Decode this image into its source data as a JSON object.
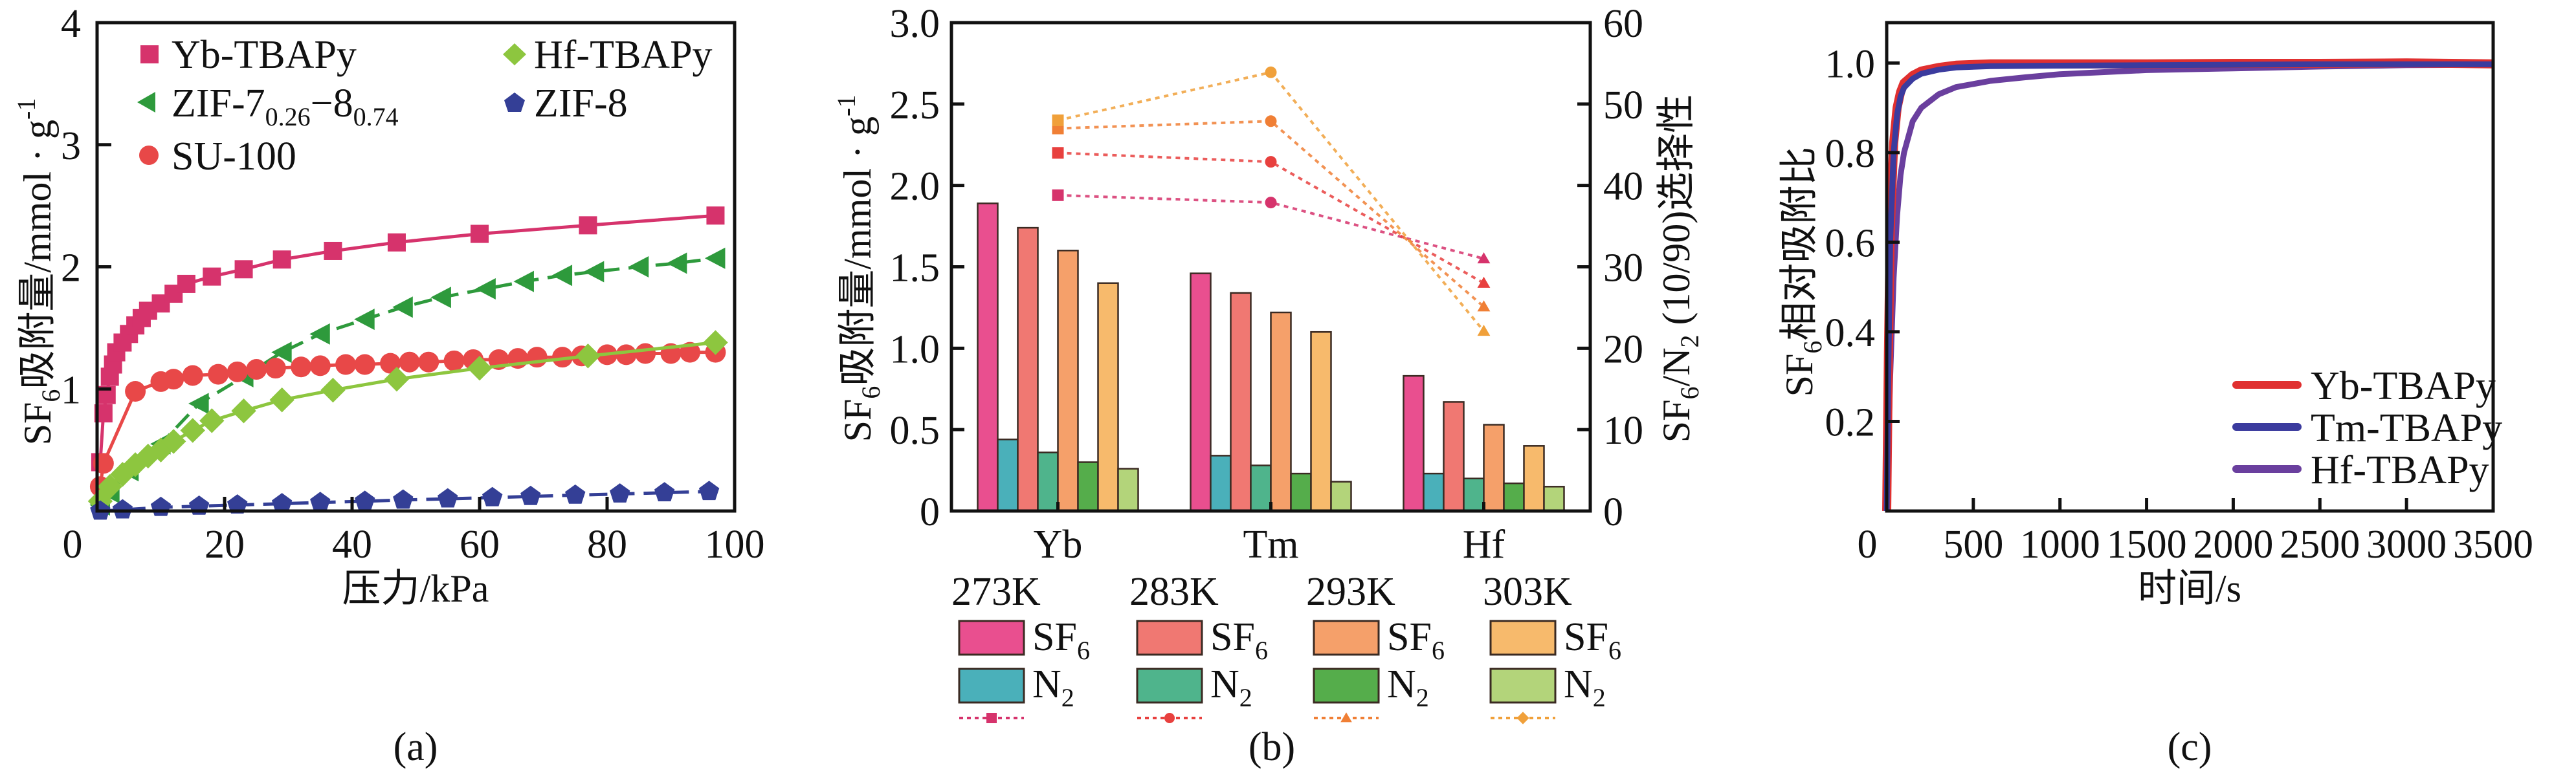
{
  "figure": {
    "panels": [
      "(a)",
      "(b)",
      "(c)"
    ]
  },
  "chart_data": [
    {
      "id": "a",
      "type": "scatter",
      "panel_label": "(a)",
      "title": "",
      "xlabel": "压力/kPa",
      "ylabel": "SF6吸附量/mmol · g-1",
      "ylabel_parts": {
        "pre": "SF",
        "sub": "6",
        "mid": "吸附量/mmol · g",
        "sup": "-1"
      },
      "xlim": [
        0,
        100
      ],
      "ylim": [
        0,
        4
      ],
      "xticks": [
        0,
        20,
        40,
        60,
        80,
        100
      ],
      "yticks": [
        1,
        2,
        3,
        4
      ],
      "grid": false,
      "legend_position": "top",
      "series": [
        {
          "name": "Yb-TBAPy",
          "legend_label": "Yb-TBAPy",
          "marker": "square",
          "color": "#d6336c",
          "line": "solid",
          "x": [
            0.5,
            1,
            1.5,
            2,
            2.5,
            3,
            4,
            5,
            6,
            7,
            8,
            10,
            12,
            14,
            18,
            23,
            29,
            37,
            47,
            60,
            77,
            97
          ],
          "y": [
            0.4,
            0.8,
            0.95,
            1.1,
            1.2,
            1.3,
            1.38,
            1.45,
            1.52,
            1.58,
            1.64,
            1.7,
            1.78,
            1.86,
            1.92,
            1.98,
            2.06,
            2.13,
            2.2,
            2.27,
            2.34,
            2.42
          ]
        },
        {
          "name": "ZIF-7(0.26)-8(0.74)",
          "legend_label": "ZIF-7",
          "legend_sub1": "0.26",
          "legend_mid": "−8",
          "legend_sub2": "0.74",
          "marker": "triangle-left",
          "color": "#2e9a3c",
          "line": "dashed",
          "x": [
            0.5,
            2,
            5,
            10,
            16,
            23,
            29,
            35,
            42,
            48,
            54,
            61,
            67,
            73,
            78,
            85,
            91,
            97
          ],
          "y": [
            0.05,
            0.15,
            0.33,
            0.55,
            0.88,
            1.1,
            1.3,
            1.45,
            1.57,
            1.67,
            1.75,
            1.82,
            1.88,
            1.93,
            1.96,
            2.0,
            2.03,
            2.07
          ]
        },
        {
          "name": "SU-100",
          "legend_label": "SU-100",
          "marker": "circle",
          "color": "#e84848",
          "line": "solid",
          "x": [
            0.5,
            1,
            6,
            10,
            12,
            15,
            19,
            22,
            25,
            28,
            32,
            35,
            39,
            42,
            46,
            49,
            52,
            56,
            59,
            63,
            66,
            69,
            73,
            76,
            80,
            83,
            86,
            90,
            93,
            97
          ],
          "y": [
            0.2,
            0.39,
            0.98,
            1.06,
            1.08,
            1.11,
            1.12,
            1.14,
            1.16,
            1.17,
            1.18,
            1.19,
            1.2,
            1.2,
            1.21,
            1.22,
            1.22,
            1.23,
            1.24,
            1.24,
            1.25,
            1.26,
            1.26,
            1.27,
            1.28,
            1.28,
            1.29,
            1.29,
            1.3,
            1.3
          ]
        },
        {
          "name": "Hf-TBAPy",
          "legend_label": "Hf-TBAPy",
          "marker": "diamond",
          "color": "#8dc63f",
          "line": "solid",
          "x": [
            0.5,
            2,
            4,
            6,
            8,
            10,
            12,
            15,
            18,
            23,
            29,
            37,
            47,
            60,
            77,
            97
          ],
          "y": [
            0.08,
            0.2,
            0.3,
            0.38,
            0.45,
            0.5,
            0.57,
            0.66,
            0.74,
            0.82,
            0.91,
            0.99,
            1.08,
            1.17,
            1.27,
            1.38
          ]
        },
        {
          "name": "ZIF-8",
          "legend_label": "ZIF-8",
          "marker": "pentagon",
          "color": "#343f96",
          "line": "dashed",
          "x": [
            0.5,
            4,
            10,
            16,
            22,
            29,
            35,
            42,
            48,
            55,
            62,
            68,
            75,
            82,
            89,
            96
          ],
          "y": [
            0.0,
            0.01,
            0.03,
            0.04,
            0.05,
            0.06,
            0.07,
            0.08,
            0.09,
            0.1,
            0.11,
            0.12,
            0.13,
            0.14,
            0.15,
            0.16
          ]
        }
      ]
    },
    {
      "id": "b",
      "type": "bar",
      "panel_label": "(b)",
      "title": "",
      "categories": [
        "Yb",
        "Tm",
        "Hf"
      ],
      "ylabel_left": "SF6吸附量/mmol · g-1",
      "ylabel_left_parts": {
        "pre": "SF",
        "sub": "6",
        "mid": "吸附量/mmol · g",
        "sup": "-1"
      },
      "ylabel_right": "SF6/N2 (10/90)选择性",
      "ylabel_right_parts": {
        "pre": "SF",
        "sub1": "6",
        "mid": "/N",
        "sub2": "2",
        "post": " (10/90)选择性"
      },
      "ylim_left": [
        0,
        3.0
      ],
      "ylim_right": [
        0,
        60
      ],
      "yticks_left": [
        "0",
        "0.5",
        "1.0",
        "1.5",
        "2.0",
        "2.5",
        "3.0"
      ],
      "yticks_right": [
        "0",
        "10",
        "20",
        "30",
        "40",
        "50",
        "60"
      ],
      "grid": false,
      "legend_position": "bottom",
      "temperatures": [
        "273K",
        "283K",
        "293K",
        "303K"
      ],
      "gas_labels": {
        "sf6_pre": "SF",
        "sf6_sub": "6",
        "n2_pre": "N",
        "n2_sub": "2"
      },
      "bar_series": [
        {
          "name": "273K SF6",
          "temp": "273K",
          "gas": "SF6",
          "color": "#e94f8f",
          "values": [
            1.89,
            1.46,
            0.83
          ]
        },
        {
          "name": "273K N2",
          "temp": "273K",
          "gas": "N2",
          "color": "#4ab0ba",
          "values": [
            0.44,
            0.34,
            0.23
          ]
        },
        {
          "name": "283K SF6",
          "temp": "283K",
          "gas": "SF6",
          "color": "#f07872",
          "values": [
            1.74,
            1.34,
            0.67
          ]
        },
        {
          "name": "283K N2",
          "temp": "283K",
          "gas": "N2",
          "color": "#4fb48c",
          "values": [
            0.36,
            0.28,
            0.2
          ]
        },
        {
          "name": "293K SF6",
          "temp": "293K",
          "gas": "SF6",
          "color": "#f5a06a",
          "values": [
            1.6,
            1.22,
            0.53
          ]
        },
        {
          "name": "293K N2",
          "temp": "293K",
          "gas": "N2",
          "color": "#55ad4b",
          "values": [
            0.3,
            0.23,
            0.17
          ]
        },
        {
          "name": "303K SF6",
          "temp": "303K",
          "gas": "SF6",
          "color": "#f7ba6c",
          "values": [
            1.4,
            1.1,
            0.4
          ]
        },
        {
          "name": "303K N2",
          "temp": "303K",
          "gas": "N2",
          "color": "#b3d47a",
          "values": [
            0.26,
            0.18,
            0.15
          ]
        }
      ],
      "selectivity_series": [
        {
          "name": "273K selectivity",
          "temp": "273K",
          "color": "#d6336c",
          "markers": [
            "square",
            "circle",
            "triangle"
          ],
          "values": [
            38.8,
            37.9,
            31.0
          ]
        },
        {
          "name": "283K selectivity",
          "temp": "283K",
          "color": "#e8403e",
          "markers": [
            "square",
            "circle",
            "triangle"
          ],
          "values": [
            44.0,
            42.9,
            28.0
          ]
        },
        {
          "name": "293K selectivity",
          "temp": "293K",
          "color": "#f07f35",
          "markers": [
            "square",
            "circle",
            "triangle"
          ],
          "values": [
            47.0,
            47.9,
            25.1
          ]
        },
        {
          "name": "303K selectivity",
          "temp": "303K",
          "color": "#f0a03a",
          "markers": [
            "square",
            "circle",
            "triangle"
          ],
          "values": [
            48.0,
            53.9,
            22.1
          ]
        }
      ],
      "legend_line_markers": [
        "square",
        "circle",
        "triangle",
        "diamond"
      ]
    },
    {
      "id": "c",
      "type": "line",
      "panel_label": "(c)",
      "title": "",
      "xlabel": "时间/s",
      "ylabel": "SF6相对吸附比",
      "ylabel_parts": {
        "pre": "SF",
        "sub": "6",
        "post": "相对吸附比"
      },
      "xlim": [
        0,
        3500
      ],
      "ylim": [
        0,
        1.09
      ],
      "xticks": [
        "0",
        "500",
        "1000",
        "1500",
        "2000",
        "2500",
        "3000",
        "3500"
      ],
      "yticks": [
        "0.2",
        "0.4",
        "0.6",
        "0.8",
        "1.0"
      ],
      "grid": false,
      "legend_position": "bottom-right",
      "series": [
        {
          "name": "Yb-TBAPy",
          "color": "#e03030",
          "x": [
            0,
            10,
            20,
            40,
            60,
            80,
            100,
            150,
            200,
            300,
            400,
            600,
            1000,
            1500,
            2000,
            2500,
            3000,
            3500
          ],
          "y": [
            0.0,
            0.35,
            0.62,
            0.82,
            0.9,
            0.935,
            0.955,
            0.972,
            0.982,
            0.99,
            0.995,
            0.998,
            0.998,
            0.998,
            0.999,
            0.999,
            1.0,
            0.998
          ]
        },
        {
          "name": "Tm-TBAPy",
          "color": "#3b3b9e",
          "x": [
            0,
            10,
            20,
            40,
            60,
            80,
            100,
            150,
            200,
            300,
            400,
            600,
            1000,
            1500,
            2000,
            2500,
            3000,
            3500
          ],
          "y": [
            0.0,
            0.33,
            0.6,
            0.8,
            0.885,
            0.925,
            0.945,
            0.965,
            0.976,
            0.985,
            0.99,
            0.993,
            0.994,
            0.995,
            0.996,
            0.997,
            0.997,
            0.997
          ]
        },
        {
          "name": "Hf-TBAPy",
          "color": "#6a3f9e",
          "x": [
            0,
            20,
            40,
            60,
            80,
            100,
            150,
            200,
            300,
            400,
            600,
            800,
            1000,
            1500,
            2000,
            2500,
            3000,
            3500
          ],
          "y": [
            0.0,
            0.3,
            0.52,
            0.66,
            0.75,
            0.8,
            0.87,
            0.9,
            0.93,
            0.946,
            0.96,
            0.968,
            0.975,
            0.984,
            0.988,
            0.992,
            0.995,
            0.996
          ]
        }
      ]
    }
  ]
}
